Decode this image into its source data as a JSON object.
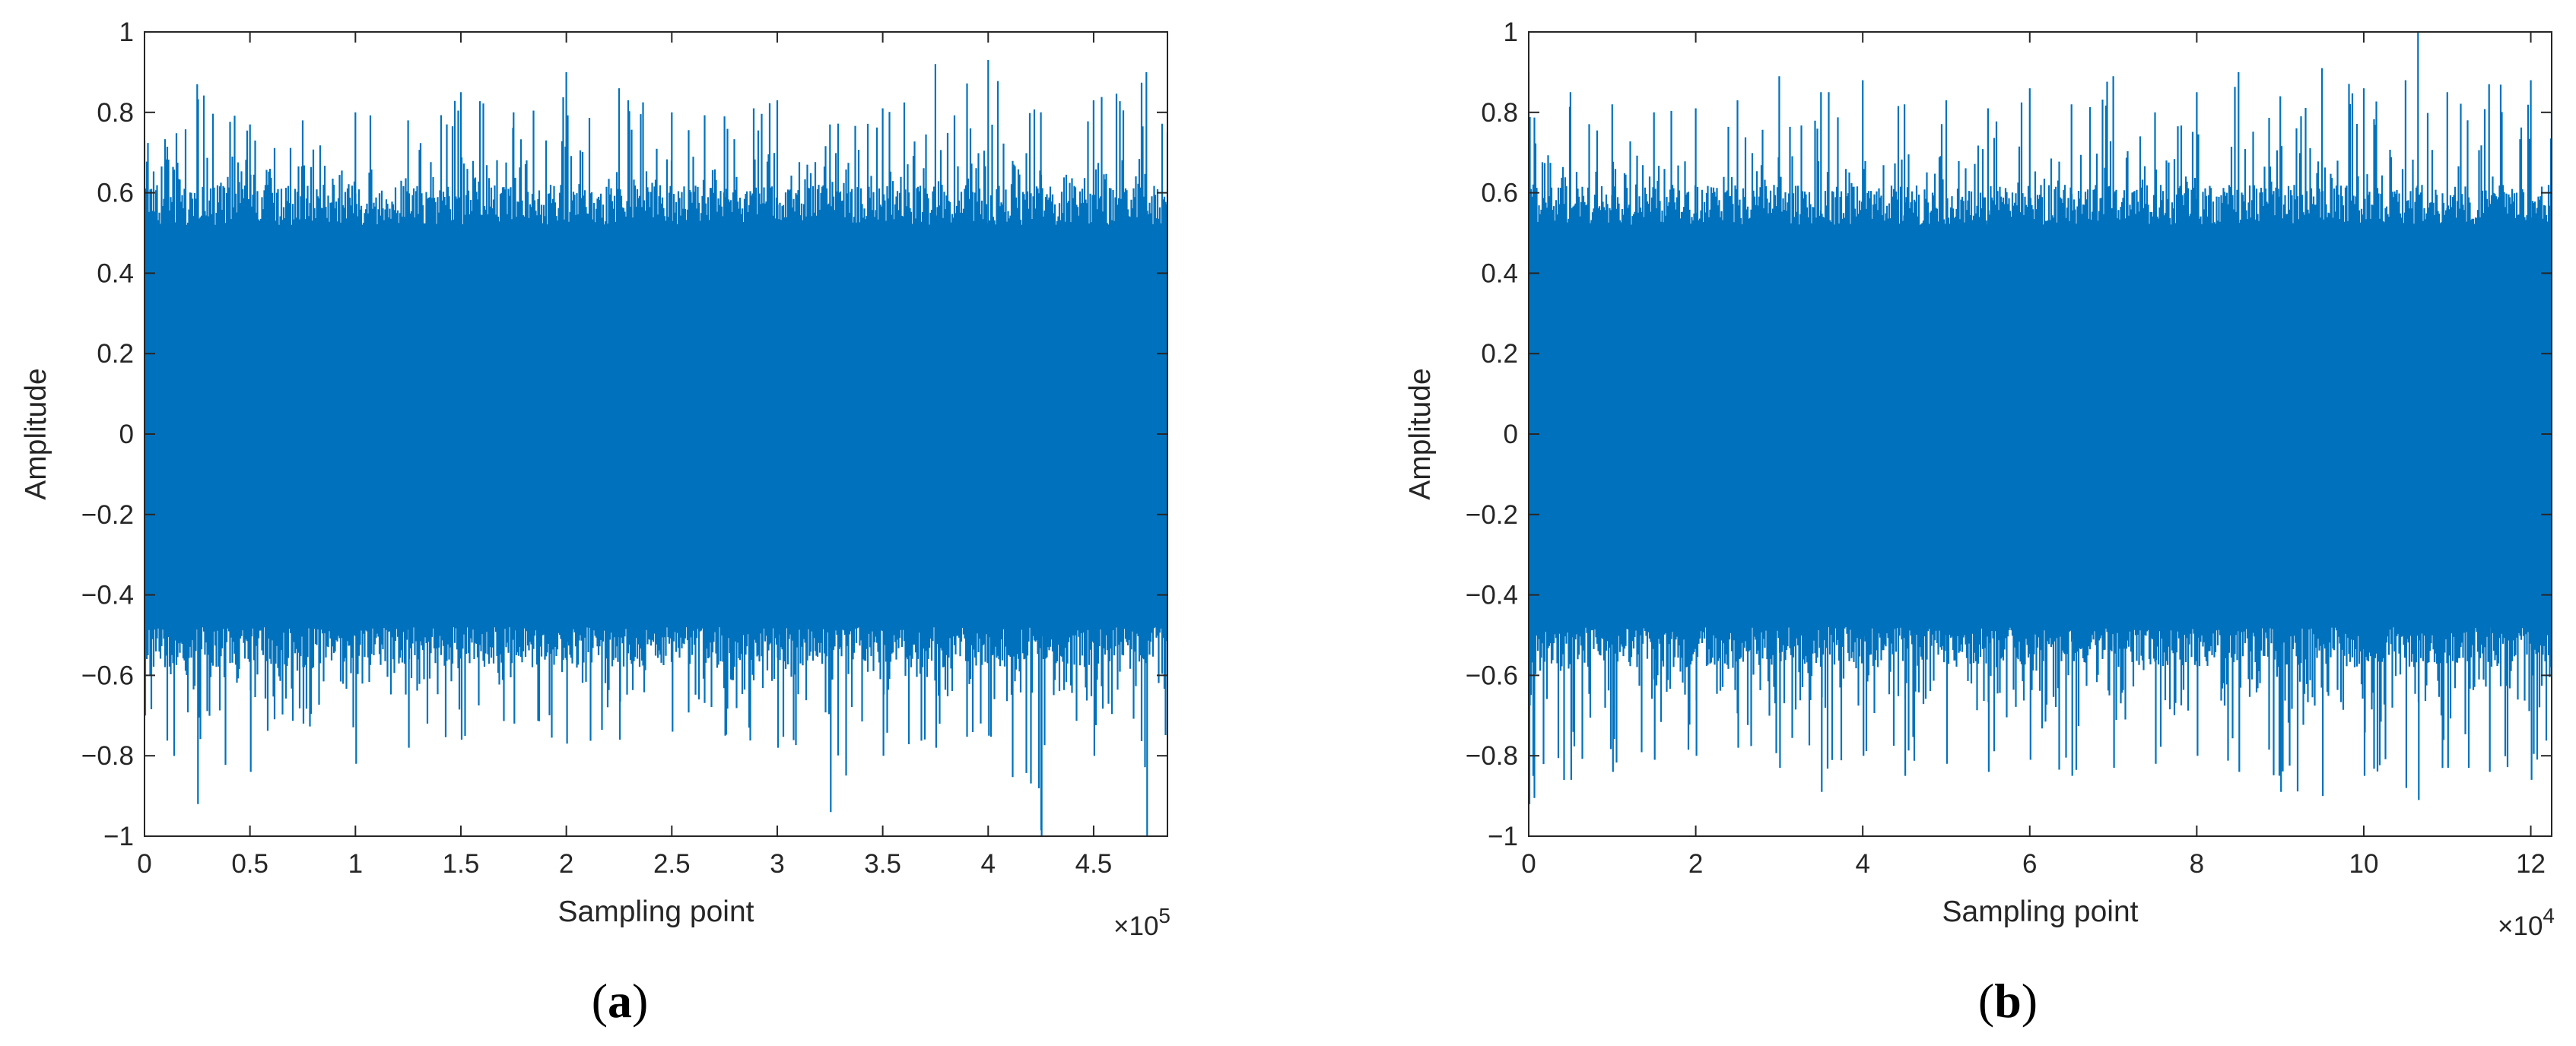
{
  "chart_data": [
    {
      "type": "line",
      "panel_label": "(a)",
      "panel_letter": "a",
      "xlabel": "Sampling point",
      "ylabel": "Amplitude",
      "x_exponent_label": "×10",
      "x_exponent": "5",
      "xlim": [
        0,
        4.85
      ],
      "ylim": [
        -1,
        1
      ],
      "xticks": [
        0,
        0.5,
        1,
        1.5,
        2,
        2.5,
        3,
        3.5,
        4,
        4.5
      ],
      "xtick_labels": [
        "0",
        "0.5",
        "1",
        "1.5",
        "2",
        "2.5",
        "3",
        "3.5",
        "4",
        "4.5"
      ],
      "yticks": [
        -1,
        -0.8,
        -0.6,
        -0.4,
        -0.2,
        0,
        0.2,
        0.4,
        0.6,
        0.8,
        1
      ],
      "ytick_labels": [
        "−1",
        "−0.8",
        "−0.6",
        "−0.4",
        "−0.2",
        "0",
        "0.2",
        "0.4",
        "0.6",
        "0.8",
        "1"
      ],
      "grid": false,
      "series_color": "#0072BD",
      "envelope": {
        "x": [
          0,
          0.25,
          0.5,
          0.75,
          1,
          1.25,
          1.5,
          1.75,
          2,
          2.25,
          2.5,
          2.75,
          3,
          3.25,
          3.5,
          3.75,
          4,
          4.25,
          4.5,
          4.75,
          4.85
        ],
        "max": [
          0.73,
          0.87,
          0.77,
          0.78,
          0.8,
          0.78,
          0.85,
          0.8,
          0.9,
          0.86,
          0.8,
          0.79,
          0.83,
          0.77,
          0.81,
          0.92,
          0.93,
          0.8,
          0.83,
          0.9,
          0.75
        ],
        "min": [
          -0.7,
          -0.92,
          -0.84,
          -0.72,
          -0.82,
          -0.78,
          -0.76,
          -0.72,
          -0.77,
          -0.76,
          -0.74,
          -0.75,
          -0.78,
          -0.94,
          -0.8,
          -0.78,
          -0.75,
          -1.0,
          -0.8,
          -1.0,
          -0.77
        ]
      }
    },
    {
      "type": "line",
      "panel_label": "(b)",
      "panel_letter": "b",
      "xlabel": "Sampling point",
      "ylabel": "Amplitude",
      "x_exponent_label": "×10",
      "x_exponent": "4",
      "xlim": [
        0,
        12.25
      ],
      "ylim": [
        -1,
        1
      ],
      "xticks": [
        0,
        2,
        4,
        6,
        8,
        10,
        12
      ],
      "xtick_labels": [
        "0",
        "2",
        "4",
        "6",
        "8",
        "10",
        "12"
      ],
      "yticks": [
        -1,
        -0.8,
        -0.6,
        -0.4,
        -0.2,
        0,
        0.2,
        0.4,
        0.6,
        0.8,
        1
      ],
      "ytick_labels": [
        "−1",
        "−0.8",
        "−0.6",
        "−0.4",
        "−0.2",
        "0",
        "0.2",
        "0.4",
        "0.6",
        "0.8",
        "1"
      ],
      "grid": false,
      "series_color": "#0072BD",
      "envelope": {
        "x": [
          0,
          0.5,
          1,
          1.5,
          2,
          2.5,
          3,
          3.5,
          4,
          4.5,
          5,
          5.5,
          6,
          6.5,
          7,
          7.5,
          8,
          8.5,
          9,
          9.5,
          10,
          10.5,
          10.65,
          11,
          11.5,
          12,
          12.25
        ],
        "max": [
          0.9,
          0.85,
          0.82,
          0.8,
          0.81,
          0.83,
          0.89,
          0.85,
          0.88,
          0.82,
          0.83,
          0.81,
          0.86,
          0.82,
          0.89,
          0.8,
          0.85,
          0.9,
          0.84,
          0.91,
          0.86,
          0.88,
          1.0,
          0.85,
          0.87,
          0.88,
          0.8
        ],
        "min": [
          -0.92,
          -0.86,
          -0.84,
          -0.81,
          -0.8,
          -0.78,
          -0.83,
          -0.89,
          -0.8,
          -0.85,
          -0.82,
          -0.84,
          -0.81,
          -0.85,
          -0.83,
          -0.82,
          -0.8,
          -0.84,
          -0.89,
          -0.9,
          -0.85,
          -0.88,
          -0.91,
          -0.83,
          -0.84,
          -0.86,
          -0.8
        ]
      }
    }
  ]
}
